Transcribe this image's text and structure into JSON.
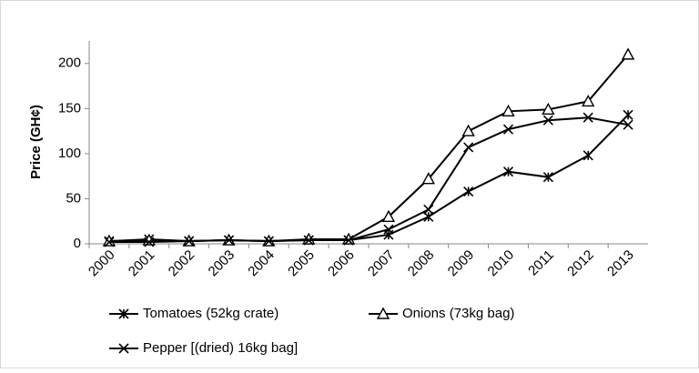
{
  "chart_data": {
    "type": "line",
    "y_label": "Price (GH¢)",
    "categories": [
      "2000",
      "2001",
      "2002",
      "2003",
      "2004",
      "2005",
      "2006",
      "2007",
      "2008",
      "2009",
      "2010",
      "2011",
      "2012",
      "2013"
    ],
    "series": [
      {
        "name": "Tomatoes (52kg crate)",
        "color": "#000000",
        "marker": "asterisk",
        "values": [
          3,
          5,
          3,
          4,
          3,
          4,
          4,
          10,
          30,
          58,
          80,
          74,
          98,
          143
        ]
      },
      {
        "name": "Onions (73kg bag)",
        "color": "#000000",
        "marker": "triangle",
        "values": [
          3,
          4,
          3,
          4,
          3,
          5,
          5,
          30,
          72,
          125,
          147,
          149,
          158,
          210
        ]
      },
      {
        "name": "Pepper [(dried) 16kg bag]",
        "color": "#000000",
        "marker": "x",
        "values": [
          2,
          2,
          3,
          4,
          3,
          4,
          4,
          16,
          38,
          107,
          127,
          137,
          140,
          132
        ]
      }
    ],
    "ylim": [
      0,
      225
    ],
    "yticks": [
      0,
      50,
      100,
      150,
      200
    ],
    "grid": false
  }
}
